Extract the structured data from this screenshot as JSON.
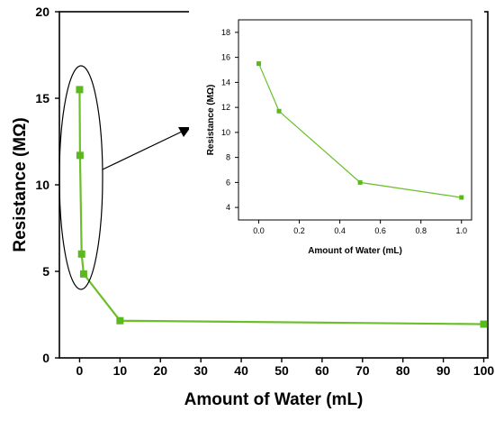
{
  "colors": {
    "series": "#6abf2a",
    "marker": "#5cb81f",
    "axis": "#000000",
    "background": "#ffffff"
  },
  "chart_data": [
    {
      "type": "line",
      "role": "main",
      "xlabel": "Amount of Water (mL)",
      "ylabel": "Resistance (MΩ)",
      "xlim": [
        -5,
        101
      ],
      "ylim": [
        0,
        20
      ],
      "xticks": [
        "0",
        "10",
        "20",
        "30",
        "40",
        "50",
        "60",
        "70",
        "80",
        "90",
        "100"
      ],
      "yticks": [
        "0",
        "5",
        "10",
        "15",
        "20"
      ],
      "grid": false,
      "series": [
        {
          "x": [
            0,
            0.1,
            0.5,
            1,
            10,
            100
          ],
          "y": [
            15.5,
            11.7,
            6.0,
            4.85,
            2.15,
            1.95
          ]
        }
      ]
    },
    {
      "type": "line",
      "role": "inset",
      "xlabel": "Amount of Water (mL)",
      "ylabel": "Resistance (MΩ)",
      "xlim": [
        -0.1,
        1.05
      ],
      "ylim": [
        3,
        19
      ],
      "xticks": [
        "0.0",
        "0.2",
        "0.4",
        "0.6",
        "0.8",
        "1.0"
      ],
      "yticks": [
        "4",
        "6",
        "8",
        "10",
        "12",
        "14",
        "16",
        "18"
      ],
      "grid": false,
      "series": [
        {
          "x": [
            0,
            0.1,
            0.5,
            1.0
          ],
          "y": [
            15.5,
            11.7,
            6.0,
            4.8
          ]
        }
      ]
    }
  ]
}
